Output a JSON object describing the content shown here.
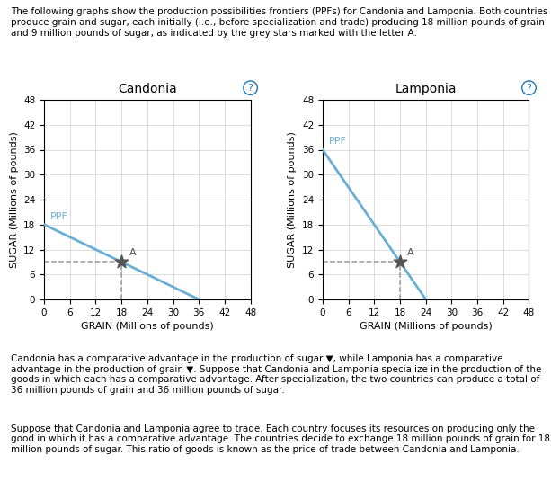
{
  "header": "The following graphs show the production possibilities frontiers (PPFs) for Candonia and Lamponia. Both countries produce grain and sugar, each initially (i.e., before specialization and trade) producing 18 million pounds of grain and 9 million pounds of sugar, as indicated by the grey stars marked with the letter A.",
  "paragraphs": [
    "Candonia has a comparative advantage in the production of sugar ▼, while Lamponia has a comparative advantage in the production of grain ▼. Suppose that Candonia and Lamponia specialize in the production of the goods in which each has a comparative advantage. After specialization, the two countries can produce a total of 36 million pounds of grain and 36 million pounds of sugar.",
    "Suppose that Candonia and Lamponia agree to trade. Each country focuses its resources on producing only the good in which it has a comparative advantage. The countries decide to exchange 18 million pounds of grain for 18 million pounds of sugar. This ratio of goods is known as the price of trade between Candonia and Lamponia."
  ],
  "chart_data": [
    {
      "type": "line",
      "title": "Candonia",
      "x_label": "GRAIN (Millions of pounds)",
      "y_label": "SUGAR (Millions of pounds)",
      "xlim": [
        0,
        48
      ],
      "ylim": [
        0,
        48
      ],
      "xticks": [
        0,
        6,
        12,
        18,
        24,
        30,
        36,
        42,
        48
      ],
      "yticks": [
        0,
        6,
        12,
        18,
        24,
        30,
        36,
        42,
        48
      ],
      "grid": true,
      "annotations": [
        "?"
      ],
      "series": [
        {
          "name": "PPF",
          "type": "line",
          "color": "#6aaed6",
          "x": [
            0,
            36
          ],
          "values": [
            18,
            0
          ]
        },
        {
          "name": "A",
          "type": "scatter",
          "marker": "star",
          "color": "#555555",
          "x": [
            18
          ],
          "values": [
            9
          ]
        }
      ]
    },
    {
      "type": "line",
      "title": "Lamponia",
      "x_label": "GRAIN (Millions of pounds)",
      "y_label": "SUGAR (Millions of pounds)",
      "xlim": [
        0,
        48
      ],
      "ylim": [
        0,
        48
      ],
      "xticks": [
        0,
        6,
        12,
        18,
        24,
        30,
        36,
        42,
        48
      ],
      "yticks": [
        0,
        6,
        12,
        18,
        24,
        30,
        36,
        42,
        48
      ],
      "grid": true,
      "annotations": [
        "?"
      ],
      "series": [
        {
          "name": "PPF",
          "type": "line",
          "color": "#6aaed6",
          "x": [
            0,
            24
          ],
          "values": [
            36,
            0
          ]
        },
        {
          "name": "A",
          "type": "scatter",
          "marker": "star",
          "color": "#555555",
          "x": [
            18
          ],
          "values": [
            9
          ]
        }
      ]
    }
  ]
}
